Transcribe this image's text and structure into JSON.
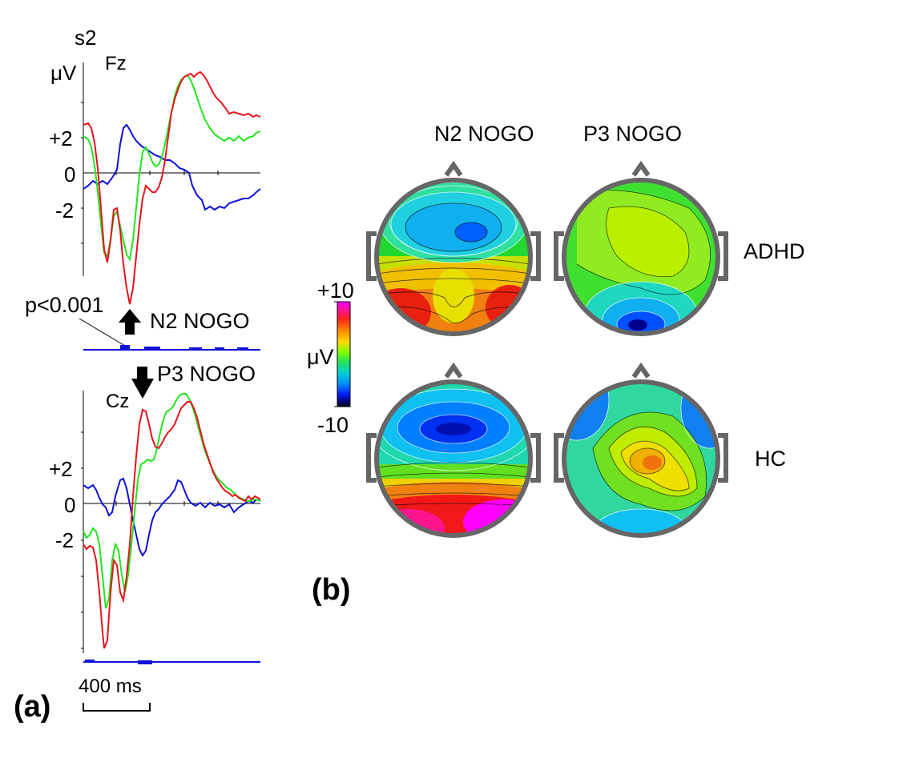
{
  "panel_a": {
    "label": "(a)",
    "subject": "s2",
    "unit": "μV",
    "fz": {
      "electrode": "Fz",
      "ticks": [
        "+2",
        "0",
        "-2"
      ],
      "pvalue": "p<0.001",
      "n2_label": "N2 NOGO"
    },
    "cz": {
      "electrode": "Cz",
      "ticks": [
        "+2",
        "0",
        "-2"
      ],
      "p3_label": "P3 NOGO"
    },
    "scale_bar": "400 ms"
  },
  "panel_b": {
    "label": "(b)",
    "columns": [
      "N2 NOGO",
      "P3 NOGO"
    ],
    "rows": [
      "ADHD",
      "HC"
    ],
    "colorbar": {
      "max": "+10",
      "min": "-10",
      "unit": "μV"
    }
  },
  "colors": {
    "red": "#e8141c",
    "green": "#22e61e",
    "blue": "#1010d8",
    "head_outline": "#666666"
  }
}
